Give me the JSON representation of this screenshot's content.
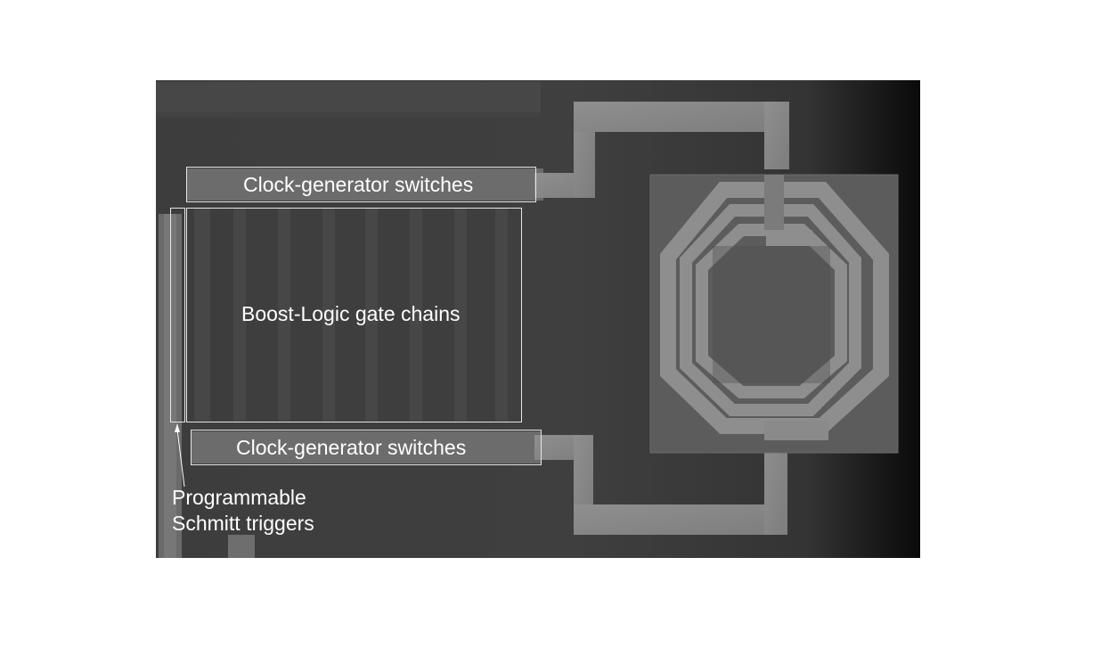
{
  "annotations": {
    "clock_switches_top": "Clock-generator switches",
    "boost_logic": "Boost-Logic gate chains",
    "clock_switches_bottom": "Clock-generator switches",
    "schmitt_line1": "Programmable",
    "schmitt_line2": "Schmitt triggers"
  },
  "colors": {
    "substrate": "#3c3c3c",
    "metal": "#8a8a8a",
    "annotation": "#ffffff"
  }
}
